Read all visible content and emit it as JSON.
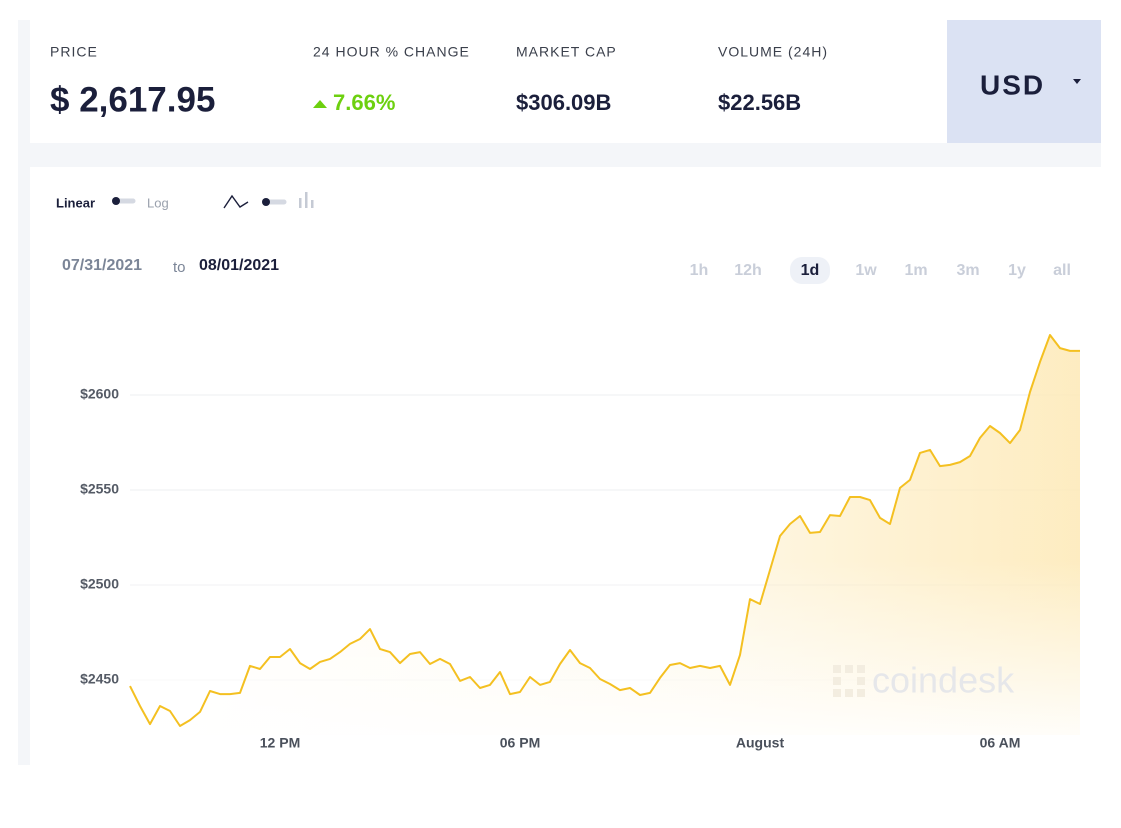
{
  "stats": [
    {
      "label": "PRICE",
      "value": "$ 2,617.95"
    },
    {
      "label": "24 HOUR % CHANGE",
      "value": "7.66%"
    },
    {
      "label": "MARKET CAP",
      "value": "$306.09B"
    },
    {
      "label": "VOLUME (24H)",
      "value": "$22.56B"
    }
  ],
  "currency": "USD",
  "scale_toggle": {
    "linear": "Linear",
    "log": "Log"
  },
  "date_range": {
    "from": "07/31/2021",
    "to_word": "to",
    "to": "08/01/2021"
  },
  "ranges": [
    "1h",
    "12h",
    "1d",
    "1w",
    "1m",
    "3m",
    "1y",
    "all"
  ],
  "active_range": 2,
  "watermark": "coindesk",
  "chart_data": {
    "type": "line",
    "categories": [
      null,
      null,
      null,
      null,
      null,
      null,
      null,
      null,
      null,
      null,
      null,
      null,
      null,
      null,
      null,
      "12 PM",
      null,
      null,
      null,
      null,
      null,
      null,
      null,
      null,
      null,
      null,
      null,
      null,
      null,
      null,
      null,
      null,
      null,
      null,
      null,
      null,
      null,
      null,
      null,
      "06 PM",
      null,
      null,
      null,
      null,
      null,
      null,
      null,
      null,
      null,
      null,
      null,
      null,
      null,
      null,
      null,
      null,
      null,
      null,
      null,
      null,
      null,
      null,
      null,
      "August",
      null,
      null,
      null,
      null,
      null,
      null,
      null,
      null,
      null,
      null,
      null,
      null,
      null,
      null,
      null,
      null,
      null,
      null,
      null,
      null,
      null,
      null,
      null,
      "06 AM",
      null,
      null,
      null,
      null,
      null,
      null,
      null,
      null
    ],
    "values": [
      2446.8,
      2436.3,
      2426.8,
      2436.3,
      2433.7,
      2425.8,
      2428.9,
      2433.2,
      2444.2,
      2442.6,
      2442.6,
      2443.2,
      2457.4,
      2455.8,
      2462.1,
      2462.1,
      2466.3,
      2458.9,
      2455.8,
      2459.5,
      2461.1,
      2464.7,
      2469.0,
      2471.6,
      2476.8,
      2466.3,
      2464.7,
      2458.9,
      2463.7,
      2464.7,
      2458.4,
      2461.1,
      2458.4,
      2449.5,
      2451.6,
      2445.8,
      2447.4,
      2454.2,
      2442.6,
      2443.7,
      2451.6,
      2447.4,
      2449.0,
      2458.4,
      2465.8,
      2458.9,
      2456.3,
      2450.5,
      2447.9,
      2444.7,
      2445.8,
      2442.1,
      2443.2,
      2451.1,
      2457.9,
      2458.9,
      2456.3,
      2457.4,
      2456.3,
      2457.4,
      2447.4,
      2463.2,
      2492.6,
      2490.0,
      2507.9,
      2525.8,
      2532.1,
      2536.3,
      2527.4,
      2527.9,
      2536.8,
      2536.3,
      2546.3,
      2546.3,
      2544.7,
      2535.3,
      2532.1,
      2551.1,
      2555.3,
      2569.5,
      2571.1,
      2562.6,
      2563.2,
      2564.7,
      2567.9,
      2577.4,
      2583.7,
      2580.0,
      2574.7,
      2581.6,
      2601.6,
      2617.4,
      2631.6,
      2624.7,
      2623.2,
      2623.2
    ],
    "color": "#f4c021",
    "ylim": [
      2424,
      2640
    ],
    "yticks": [
      {
        "value": 2450,
        "label": "$2450"
      },
      {
        "value": 2500,
        "label": "$2500"
      },
      {
        "value": 2550,
        "label": "$2550"
      },
      {
        "value": 2600,
        "label": "$2600"
      }
    ],
    "grid": true
  }
}
